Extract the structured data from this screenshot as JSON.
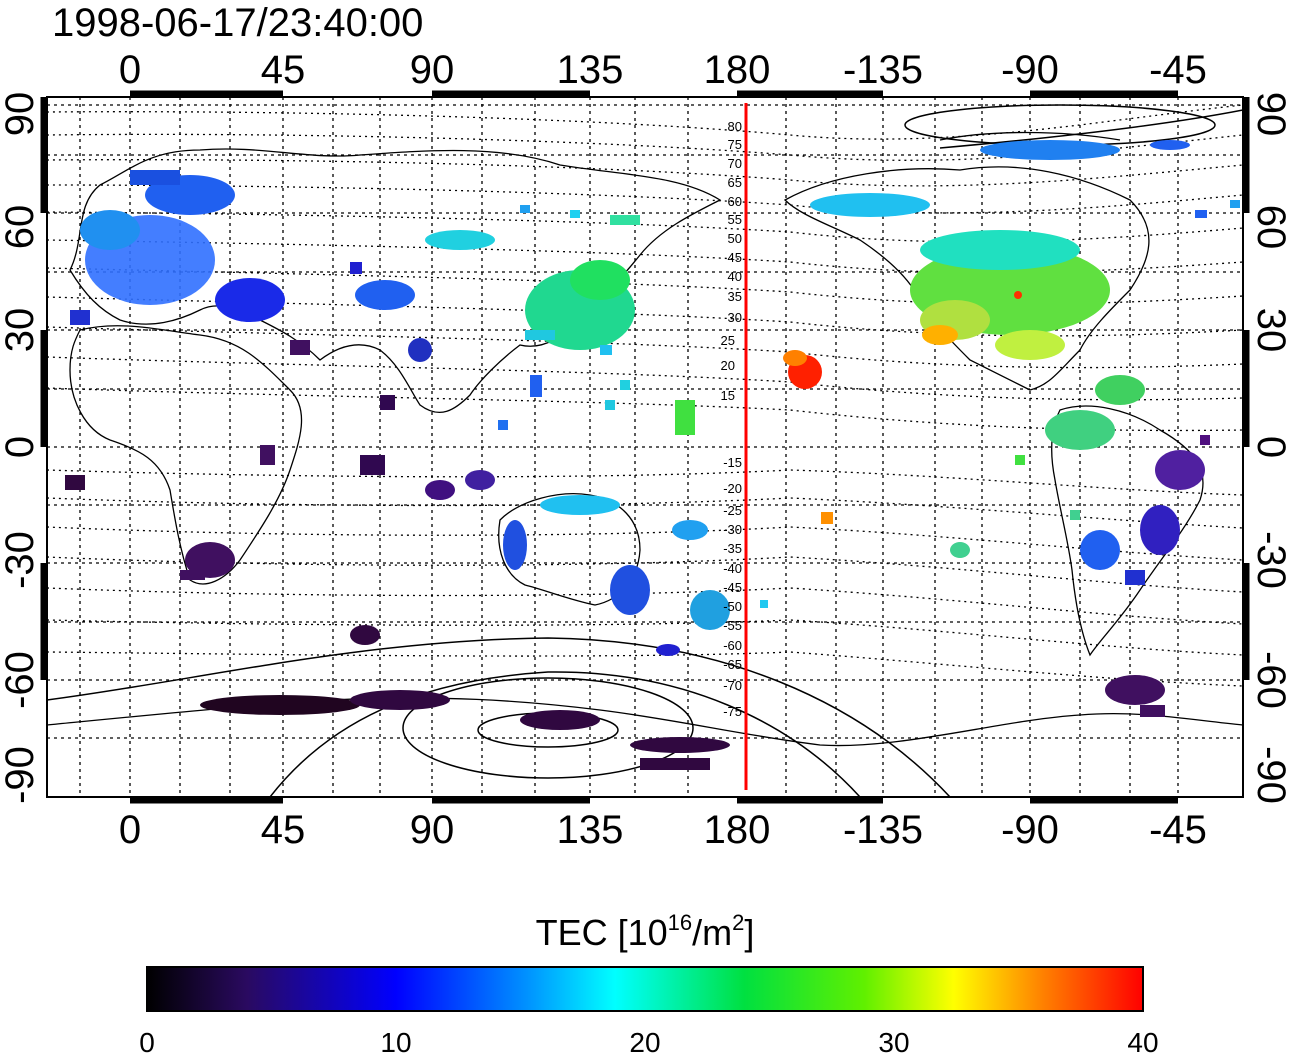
{
  "map": {
    "timestamp": "1998-06-17/23:40:00",
    "lon_ticks": [
      "0",
      "45",
      "90",
      "135",
      "180",
      "-135",
      "-90",
      "-45"
    ],
    "lat_ticks": [
      "90",
      "60",
      "30",
      "0",
      "-30",
      "-60",
      "-90"
    ],
    "mlat_labels": [
      "80",
      "75",
      "70",
      "65",
      "60",
      "55",
      "50",
      "45",
      "40",
      "35",
      "30",
      "25",
      "20",
      "15",
      "-15",
      "-20",
      "-25",
      "-30",
      "-35",
      "-40",
      "-45",
      "-50",
      "-55",
      "-60",
      "-65",
      "-70",
      "-75"
    ],
    "terminator_color": "#ff0000"
  },
  "colorbar": {
    "label_main": "TEC  [10",
    "label_exp1": "16",
    "label_mid": "/m",
    "label_exp2": "2",
    "label_end": "]",
    "ticks": [
      "0",
      "10",
      "20",
      "30",
      "40"
    ],
    "min": 0,
    "max": 40
  },
  "chart_data": {
    "type": "heatmap",
    "title": "1998-06-17/23:40:00",
    "colorbar_range": [
      0,
      40
    ],
    "colorbar_label": "TEC [10^16/m^2]",
    "regions": [
      {
        "lon": 15,
        "lat": 52,
        "tec": 10
      },
      {
        "lon": 35,
        "lat": 42,
        "tec": 9
      },
      {
        "lon": 75,
        "lat": 42,
        "tec": 10
      },
      {
        "lon": 140,
        "lat": 38,
        "tec": 20
      },
      {
        "lon": 100,
        "lat": 48,
        "tec": 15
      },
      {
        "lon": -100,
        "lat": 40,
        "tec": 22
      },
      {
        "lon": -105,
        "lat": 33,
        "tec": 28
      },
      {
        "lon": -155,
        "lat": 20,
        "tec": 38
      },
      {
        "lon": -150,
        "lat": -21,
        "tec": 32
      },
      {
        "lon": 120,
        "lat": -28,
        "tec": 12
      },
      {
        "lon": 145,
        "lat": -30,
        "tec": 14
      },
      {
        "lon": 172,
        "lat": -42,
        "tec": 11
      },
      {
        "lon": 25,
        "lat": -30,
        "tec": 4
      },
      {
        "lon": -45,
        "lat": -15,
        "tec": 6
      },
      {
        "lon": -70,
        "lat": 5,
        "tec": 22
      },
      {
        "lon": -60,
        "lat": -68,
        "tec": 3
      },
      {
        "lon": 60,
        "lat": -72,
        "tec": 2
      }
    ]
  }
}
